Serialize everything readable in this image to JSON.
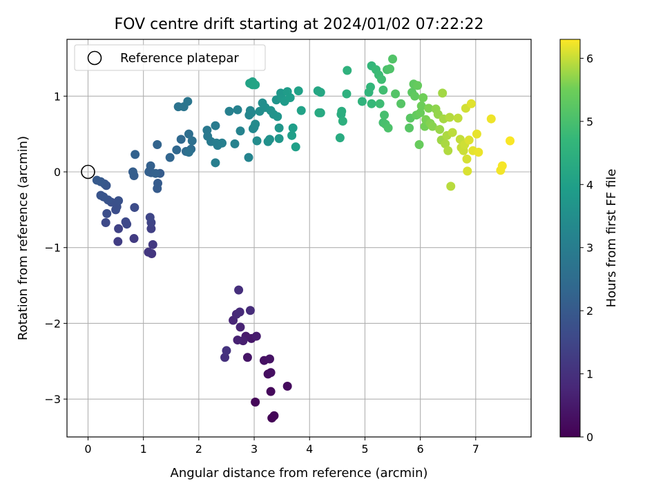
{
  "chart_data": {
    "type": "scatter",
    "title": "FOV centre drift starting at 2024/01/02 07:22:22",
    "xlabel": "Angular distance from reference (arcmin)",
    "ylabel": "Rotation from reference (arcmin)",
    "xlim": [
      -0.38,
      8.0
    ],
    "ylim": [
      -3.5,
      1.75
    ],
    "xticks": [
      "0",
      "1",
      "2",
      "3",
      "4",
      "5",
      "6",
      "7"
    ],
    "yticks": [
      "−3",
      "−2",
      "−1",
      "0",
      "1"
    ],
    "grid": true,
    "legend_position": "top-left",
    "legend": [
      {
        "label": "Reference platepar",
        "marker": "open-circle",
        "x": 0,
        "y": 0
      }
    ],
    "colorbar": {
      "label": "Hours from first FF file",
      "colormap": "viridis",
      "range": [
        0,
        6.3
      ],
      "ticks": [
        "0",
        "1",
        "2",
        "3",
        "4",
        "5",
        "6"
      ]
    },
    "points": [
      [
        3.32,
        -3.25,
        0.05
      ],
      [
        3.36,
        -3.22,
        0.08
      ],
      [
        3.02,
        -3.04,
        0.12
      ],
      [
        3.3,
        -2.9,
        0.16
      ],
      [
        3.6,
        -2.83,
        0.2
      ],
      [
        3.25,
        -2.67,
        0.24
      ],
      [
        3.3,
        -2.65,
        0.28
      ],
      [
        3.18,
        -2.49,
        0.32
      ],
      [
        3.28,
        -2.47,
        0.36
      ],
      [
        2.88,
        -2.45,
        0.4
      ],
      [
        2.95,
        -2.2,
        0.45
      ],
      [
        2.85,
        -2.17,
        0.5
      ],
      [
        3.04,
        -2.17,
        0.55
      ],
      [
        2.8,
        -2.23,
        0.6
      ],
      [
        2.7,
        -2.22,
        0.65
      ],
      [
        2.75,
        -2.05,
        0.7
      ],
      [
        2.62,
        -1.96,
        0.75
      ],
      [
        2.68,
        -1.88,
        0.8
      ],
      [
        2.74,
        -1.85,
        0.85
      ],
      [
        2.93,
        -1.83,
        0.9
      ],
      [
        2.72,
        -1.56,
        0.95
      ],
      [
        2.47,
        -2.45,
        1.0
      ],
      [
        2.5,
        -2.36,
        1.05
      ],
      [
        1.15,
        -1.08,
        1.1
      ],
      [
        1.09,
        -1.06,
        1.15
      ],
      [
        1.17,
        -0.96,
        1.2
      ],
      [
        0.83,
        -0.88,
        1.25
      ],
      [
        0.54,
        -0.92,
        1.3
      ],
      [
        1.14,
        -0.75,
        1.35
      ],
      [
        0.55,
        -0.75,
        1.4
      ],
      [
        1.14,
        -0.67,
        1.45
      ],
      [
        1.12,
        -0.6,
        1.5
      ],
      [
        0.7,
        -0.69,
        1.55
      ],
      [
        0.68,
        -0.66,
        1.58
      ],
      [
        0.32,
        -0.67,
        1.6
      ],
      [
        0.84,
        -0.47,
        1.65
      ],
      [
        0.5,
        -0.5,
        1.68
      ],
      [
        0.34,
        -0.55,
        1.7
      ],
      [
        0.52,
        -0.46,
        1.73
      ],
      [
        0.42,
        -0.4,
        1.76
      ],
      [
        0.55,
        -0.38,
        1.79
      ],
      [
        0.36,
        -0.37,
        1.82
      ],
      [
        0.23,
        -0.31,
        1.85
      ],
      [
        0.28,
        -0.33,
        1.88
      ],
      [
        0.33,
        -0.18,
        1.91
      ],
      [
        0.3,
        -0.16,
        1.94
      ],
      [
        0.23,
        -0.13,
        1.97
      ],
      [
        0.16,
        -0.11,
        2.0
      ],
      [
        1.25,
        -0.22,
        2.02
      ],
      [
        1.26,
        -0.15,
        2.04
      ],
      [
        1.3,
        -0.02,
        2.06
      ],
      [
        0.83,
        -0.05,
        2.08
      ],
      [
        0.81,
        0.0,
        2.1
      ],
      [
        1.1,
        0.0,
        2.12
      ],
      [
        1.14,
        -0.01,
        2.14
      ],
      [
        1.11,
        0.01,
        2.16
      ],
      [
        1.13,
        0.08,
        2.18
      ],
      [
        1.22,
        -0.02,
        2.2
      ],
      [
        0.85,
        0.23,
        2.22
      ],
      [
        1.25,
        0.36,
        2.25
      ],
      [
        1.48,
        0.19,
        2.3
      ],
      [
        1.6,
        0.29,
        2.35
      ],
      [
        1.68,
        0.43,
        2.4
      ],
      [
        1.77,
        0.27,
        2.45
      ],
      [
        1.86,
        0.3,
        2.5
      ],
      [
        1.82,
        0.5,
        2.55
      ],
      [
        1.88,
        0.41,
        2.6
      ],
      [
        1.82,
        0.26,
        2.65
      ],
      [
        1.63,
        0.86,
        2.7
      ],
      [
        1.73,
        0.86,
        2.75
      ],
      [
        1.8,
        0.93,
        2.8
      ],
      [
        2.15,
        0.55,
        2.85
      ],
      [
        2.16,
        0.47,
        2.88
      ],
      [
        2.22,
        0.4,
        2.91
      ],
      [
        2.3,
        0.61,
        2.94
      ],
      [
        2.34,
        0.35,
        2.97
      ],
      [
        2.32,
        0.38,
        3.0
      ],
      [
        2.3,
        0.12,
        3.03
      ],
      [
        2.42,
        0.38,
        3.06
      ],
      [
        2.55,
        0.8,
        3.09
      ],
      [
        2.7,
        0.82,
        3.12
      ],
      [
        2.65,
        0.37,
        3.15
      ],
      [
        2.75,
        0.54,
        3.18
      ],
      [
        2.9,
        0.19,
        3.21
      ],
      [
        2.91,
        0.75,
        3.24
      ],
      [
        2.93,
        0.81,
        3.27
      ],
      [
        2.95,
        0.78,
        3.3
      ],
      [
        2.98,
        0.57,
        3.33
      ],
      [
        3.0,
        0.59,
        3.36
      ],
      [
        3.02,
        0.63,
        3.39
      ],
      [
        3.05,
        0.41,
        3.42
      ],
      [
        3.1,
        0.8,
        3.45
      ],
      [
        3.15,
        0.91,
        3.48
      ],
      [
        3.2,
        0.85,
        3.51
      ],
      [
        3.25,
        0.4,
        3.54
      ],
      [
        3.28,
        0.43,
        3.57
      ],
      [
        3.3,
        0.81,
        3.6
      ],
      [
        3.35,
        0.76,
        3.63
      ],
      [
        3.4,
        0.95,
        3.66
      ],
      [
        3.42,
        0.73,
        3.69
      ],
      [
        3.45,
        0.58,
        3.72
      ],
      [
        3.45,
        0.44,
        3.75
      ],
      [
        3.48,
        1.04,
        3.78
      ],
      [
        3.5,
        0.97,
        3.81
      ],
      [
        3.55,
        0.93,
        3.84
      ],
      [
        3.6,
        1.06,
        3.87
      ],
      [
        3.65,
        0.98,
        3.9
      ],
      [
        3.7,
        0.58,
        3.93
      ],
      [
        3.68,
        0.48,
        3.96
      ],
      [
        3.75,
        0.33,
        3.99
      ],
      [
        3.8,
        1.07,
        4.02
      ],
      [
        3.85,
        0.81,
        4.05
      ],
      [
        2.92,
        1.17,
        4.08
      ],
      [
        2.97,
        1.19,
        4.1
      ],
      [
        2.97,
        1.15,
        4.12
      ],
      [
        3.02,
        1.15,
        4.14
      ],
      [
        4.15,
        1.07,
        4.18
      ],
      [
        4.2,
        1.05,
        4.22
      ],
      [
        4.2,
        0.78,
        4.26
      ],
      [
        4.17,
        0.78,
        4.3
      ],
      [
        4.55,
        0.45,
        4.34
      ],
      [
        4.57,
        0.76,
        4.38
      ],
      [
        4.58,
        0.8,
        4.42
      ],
      [
        4.6,
        0.67,
        4.46
      ],
      [
        4.67,
        1.03,
        4.5
      ],
      [
        4.68,
        1.34,
        4.54
      ],
      [
        4.95,
        0.93,
        4.58
      ],
      [
        5.07,
        1.05,
        4.62
      ],
      [
        5.1,
        1.12,
        4.66
      ],
      [
        5.12,
        1.4,
        4.7
      ],
      [
        5.12,
        0.9,
        4.74
      ],
      [
        5.2,
        1.35,
        4.78
      ],
      [
        5.25,
        1.28,
        4.82
      ],
      [
        5.27,
        0.9,
        4.85
      ],
      [
        5.3,
        1.22,
        4.88
      ],
      [
        5.33,
        1.08,
        4.91
      ],
      [
        5.33,
        0.65,
        4.94
      ],
      [
        5.35,
        0.75,
        4.97
      ],
      [
        5.37,
        0.63,
        5.0
      ],
      [
        5.4,
        1.35,
        5.03
      ],
      [
        5.42,
        0.58,
        5.06
      ],
      [
        5.45,
        1.36,
        5.09
      ],
      [
        5.5,
        1.49,
        5.12
      ],
      [
        5.55,
        1.03,
        5.15
      ],
      [
        5.65,
        0.9,
        5.18
      ],
      [
        5.8,
        0.58,
        5.21
      ],
      [
        5.82,
        0.71,
        5.24
      ],
      [
        5.85,
        1.05,
        5.27
      ],
      [
        5.88,
        1.16,
        5.3
      ],
      [
        5.9,
        1.0,
        5.33
      ],
      [
        5.93,
        0.75,
        5.36
      ],
      [
        5.95,
        1.14,
        5.39
      ],
      [
        5.98,
        0.36,
        5.42
      ],
      [
        6.0,
        0.78,
        5.45
      ],
      [
        6.02,
        0.87,
        5.48
      ],
      [
        6.05,
        0.98,
        5.51
      ],
      [
        6.08,
        0.6,
        5.54
      ],
      [
        6.1,
        0.69,
        5.57
      ],
      [
        6.15,
        0.84,
        5.6
      ],
      [
        6.18,
        0.64,
        5.63
      ],
      [
        6.22,
        0.6,
        5.66
      ],
      [
        6.28,
        0.83,
        5.69
      ],
      [
        6.32,
        0.76,
        5.72
      ],
      [
        6.35,
        0.56,
        5.75
      ],
      [
        6.38,
        0.42,
        5.78
      ],
      [
        6.4,
        1.04,
        5.8
      ],
      [
        6.42,
        0.7,
        5.82
      ],
      [
        6.45,
        0.37,
        5.84
      ],
      [
        6.48,
        0.48,
        5.86
      ],
      [
        6.5,
        0.28,
        5.88
      ],
      [
        6.53,
        0.72,
        5.9
      ],
      [
        6.55,
        -0.19,
        5.92
      ],
      [
        6.58,
        0.52,
        5.94
      ],
      [
        6.68,
        0.71,
        5.96
      ],
      [
        6.72,
        0.43,
        5.98
      ],
      [
        6.74,
        0.32,
        6.0
      ],
      [
        6.78,
        0.28,
        6.02
      ],
      [
        6.8,
        0.36,
        6.04
      ],
      [
        6.82,
        0.84,
        6.06
      ],
      [
        6.84,
        0.17,
        6.08
      ],
      [
        6.85,
        0.01,
        6.1
      ],
      [
        6.88,
        0.42,
        6.12
      ],
      [
        6.92,
        0.9,
        6.14
      ],
      [
        6.95,
        0.28,
        6.16
      ],
      [
        7.02,
        0.5,
        6.18
      ],
      [
        7.05,
        0.26,
        6.2
      ],
      [
        7.28,
        0.7,
        6.22
      ],
      [
        7.45,
        0.02,
        6.24
      ],
      [
        7.48,
        0.08,
        6.26
      ],
      [
        7.62,
        0.41,
        6.28
      ]
    ]
  }
}
